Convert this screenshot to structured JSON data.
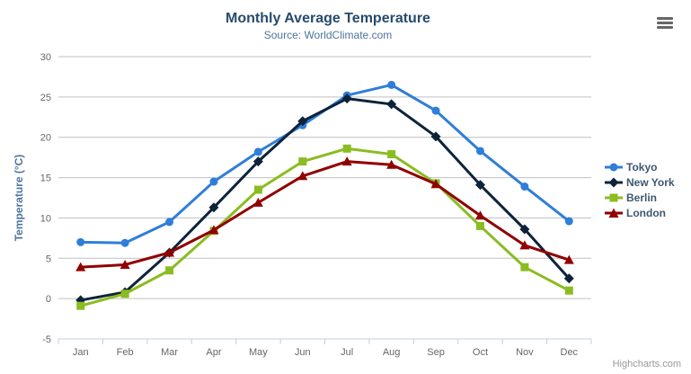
{
  "chart_data": {
    "type": "line",
    "title": "Monthly Average Temperature",
    "subtitle": "Source: WorldClimate.com",
    "xlabel": "",
    "ylabel": "Temperature (°C)",
    "ylim": [
      -5,
      30
    ],
    "y_ticks": [
      -5,
      0,
      5,
      10,
      15,
      20,
      25,
      30
    ],
    "grid": true,
    "legend_position": "right",
    "categories": [
      "Jan",
      "Feb",
      "Mar",
      "Apr",
      "May",
      "Jun",
      "Jul",
      "Aug",
      "Sep",
      "Oct",
      "Nov",
      "Dec"
    ],
    "series": [
      {
        "name": "Tokyo",
        "color": "#2f7ed8",
        "marker": "circle",
        "values": [
          7.0,
          6.9,
          9.5,
          14.5,
          18.2,
          21.5,
          25.2,
          26.5,
          23.3,
          18.3,
          13.9,
          9.6
        ]
      },
      {
        "name": "New York",
        "color": "#0d233a",
        "marker": "diamond",
        "values": [
          -0.2,
          0.8,
          5.7,
          11.3,
          17.0,
          22.0,
          24.8,
          24.1,
          20.1,
          14.1,
          8.6,
          2.5
        ]
      },
      {
        "name": "Berlin",
        "color": "#8bbc21",
        "marker": "square",
        "values": [
          -0.9,
          0.6,
          3.5,
          8.4,
          13.5,
          17.0,
          18.6,
          17.9,
          14.3,
          9.0,
          3.9,
          1.0
        ]
      },
      {
        "name": "London",
        "color": "#910000",
        "marker": "triangle",
        "values": [
          3.9,
          4.2,
          5.7,
          8.5,
          11.9,
          15.2,
          17.0,
          16.6,
          14.2,
          10.3,
          6.6,
          4.8
        ]
      }
    ],
    "axis_colors": {
      "grid_line": "#c0c0c0",
      "axis_line": "#c0d0e0",
      "tick": "#c0d0e0",
      "tick_label": "#666666",
      "axis_title": "#4d759e"
    }
  },
  "credits": {
    "label": "Highcharts.com"
  },
  "export_menu": {
    "icon": "hamburger-icon"
  }
}
